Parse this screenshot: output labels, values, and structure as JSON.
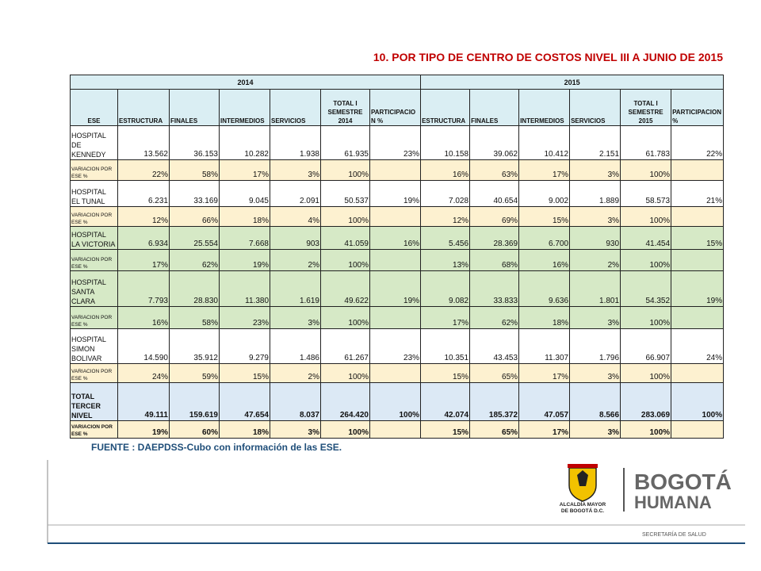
{
  "title": "10. POR TIPO DE CENTRO DE COSTOS NIVEL III  A JUNIO DE 2015",
  "table": {
    "years": [
      "2014",
      "2015"
    ],
    "columns": [
      "ESE",
      "ESTRUCTURA",
      "FINALES",
      "INTERMEDIOS",
      "SERVICIOS",
      "TOTAL  I SEMESTRE 2014",
      "PARTICIPACION %",
      "ESTRUCTURA",
      "FINALES",
      "INTERMEDIOS",
      "SERVICIOS",
      "TOTAL I SEMESTRE 2015",
      "PARTICIPACION %"
    ],
    "rows": [
      [
        "HOSPITAL DE KENNEDY",
        "13.562",
        "36.153",
        "10.282",
        "1.938",
        "61.935",
        "23%",
        "10.158",
        "39.062",
        "10.412",
        "2.151",
        "61.783",
        "22%"
      ],
      [
        "VARIACION POR ESE %",
        "22%",
        "58%",
        "17%",
        "3%",
        "100%",
        null,
        "16%",
        "63%",
        "17%",
        "3%",
        "100%",
        null
      ],
      [
        "HOSPITAL EL TUNAL",
        "6.231",
        "33.169",
        "9.045",
        "2.091",
        "50.537",
        "19%",
        "7.028",
        "40.654",
        "9.002",
        "1.889",
        "58.573",
        "21%"
      ],
      [
        "VARIACION POR ESE %",
        "12%",
        "66%",
        "18%",
        "4%",
        "100%",
        null,
        "12%",
        "69%",
        "15%",
        "3%",
        "100%",
        null
      ],
      [
        "HOSPITAL LA VICTORIA",
        "6.934",
        "25.554",
        "7.668",
        "903",
        "41.059",
        "16%",
        "5.456",
        "28.369",
        "6.700",
        "930",
        "41.454",
        "15%"
      ],
      [
        "VARIACION POR ESE %",
        "17%",
        "62%",
        "19%",
        "2%",
        "100%",
        null,
        "13%",
        "68%",
        "16%",
        "2%",
        "100%",
        null
      ],
      [
        "HOSPITAL SANTA CLARA",
        "7.793",
        "28.830",
        "11.380",
        "1.619",
        "49.622",
        "19%",
        "9.082",
        "33.833",
        "9.636",
        "1.801",
        "54.352",
        "19%"
      ],
      [
        "VARIACION POR ESE %",
        "16%",
        "58%",
        "23%",
        "3%",
        "100%",
        null,
        "17%",
        "62%",
        "18%",
        "3%",
        "100%",
        null
      ],
      [
        "HOSPITAL SIMON BOLIVAR",
        "14.590",
        "35.912",
        "9.279",
        "1.486",
        "61.267",
        "23%",
        "10.351",
        "43.453",
        "11.307",
        "1.796",
        "66.907",
        "24%"
      ],
      [
        "VARIACION POR ESE %",
        "24%",
        "59%",
        "15%",
        "2%",
        "100%",
        null,
        "15%",
        "65%",
        "17%",
        "3%",
        "100%",
        null
      ],
      [
        "TOTAL TERCER NIVEL",
        "49.111",
        "159.619",
        "47.654",
        "8.037",
        "264.420",
        "100%",
        "42.074",
        "185.372",
        "47.057",
        "8.566",
        "283.069",
        "100%"
      ],
      [
        "VARIACION POR ESE %",
        "19%",
        "60%",
        "18%",
        "3%",
        "100%",
        null,
        "15%",
        "65%",
        "17%",
        "3%",
        "100%",
        null
      ]
    ]
  },
  "source": "FUENTE : DAEPDSS-Cubo con información de las ESE.",
  "logos": {
    "alcaldia_line1": "ALCALDÍA MAYOR",
    "alcaldia_line2": "DE BOGOTÁ D.C.",
    "bogota": "BOGOTÁ",
    "humana": "HUMANA",
    "secretaria": "SECRETARÍA DE SALUD"
  }
}
